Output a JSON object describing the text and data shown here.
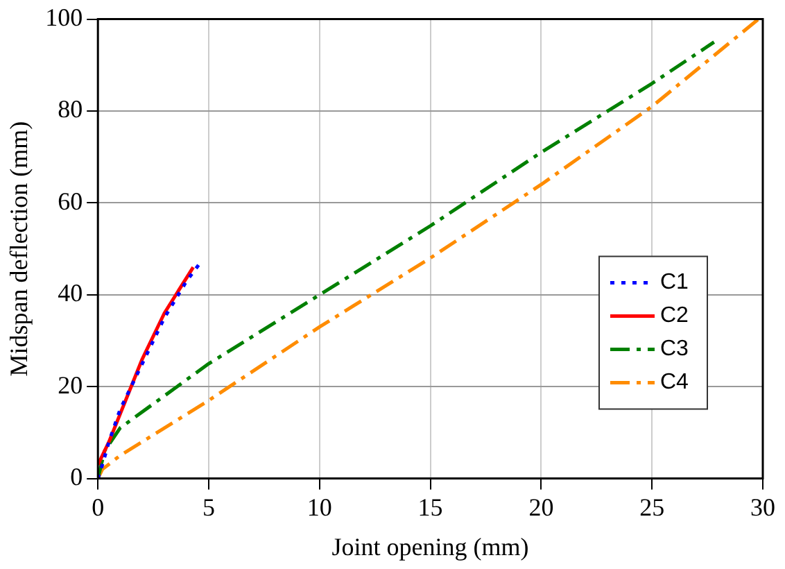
{
  "chart_data": {
    "type": "line",
    "xlabel": "Joint opening (mm)",
    "ylabel": "Midspan deflection (mm)",
    "xlim": [
      0,
      30
    ],
    "xticks": [
      0,
      5,
      10,
      15,
      20,
      25,
      30
    ],
    "ylim": [
      0,
      100
    ],
    "yticks": [
      0,
      20,
      40,
      60,
      80,
      100
    ],
    "grid": true,
    "legend": "bottom right",
    "marker": "none",
    "series": [
      {
        "name": "C1",
        "color": "#0000ff",
        "line_style": "dotted",
        "x": [
          0,
          0.2,
          0.5,
          1,
          2,
          3,
          4,
          4.7
        ],
        "values": [
          0,
          3,
          8,
          15,
          25,
          35,
          43,
          47.5
        ]
      },
      {
        "name": "C2",
        "color": "#ff0000",
        "line_style": "solid",
        "x": [
          0,
          0.5,
          1,
          2,
          3,
          4.3
        ],
        "values": [
          3,
          8,
          14,
          26,
          36,
          46
        ]
      },
      {
        "name": "C3",
        "color": "#008000",
        "line_style": "dashed",
        "x": [
          0,
          0.3,
          1,
          3,
          5,
          10,
          15,
          20,
          25,
          27.8
        ],
        "values": [
          0,
          6,
          11,
          18,
          25,
          40,
          55,
          71,
          86,
          95
        ]
      },
      {
        "name": "C4",
        "color": "#ff8c00",
        "line_style": "dashed",
        "x": [
          0,
          0.2,
          1,
          5,
          10,
          15,
          20,
          25,
          29.8
        ],
        "values": [
          0,
          2,
          5,
          17,
          33,
          48,
          64,
          81,
          100
        ]
      }
    ]
  }
}
